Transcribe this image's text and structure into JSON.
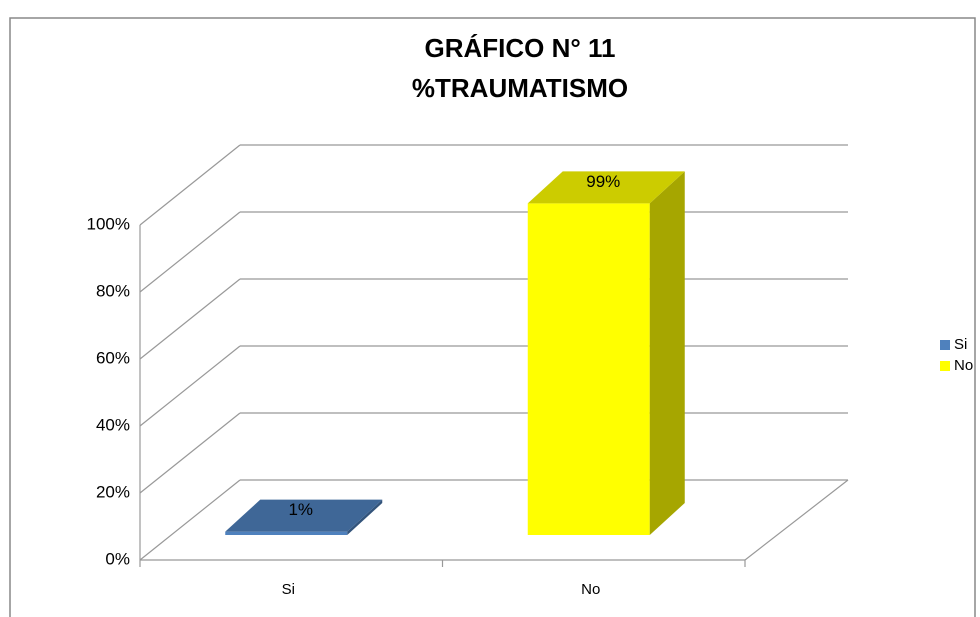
{
  "chart_data": {
    "type": "bar3d",
    "title": "GRÁFICO N° 11",
    "subtitle": "%TRAUMATISMO",
    "categories": [
      "Si",
      "No"
    ],
    "values": [
      1,
      99
    ],
    "value_labels": [
      "1%",
      "99%"
    ],
    "colors": [
      "#4f81bd",
      "#ffff00"
    ],
    "ylim": [
      0,
      100
    ],
    "yticks": [
      {
        "value": 0,
        "label": "0%"
      },
      {
        "value": 20,
        "label": "20%"
      },
      {
        "value": 40,
        "label": "40%"
      },
      {
        "value": 60,
        "label": "60%"
      },
      {
        "value": 80,
        "label": "80%"
      },
      {
        "value": 100,
        "label": "100%"
      }
    ],
    "grid": true,
    "legend": "right"
  }
}
